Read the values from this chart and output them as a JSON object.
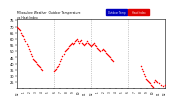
{
  "title": "Milwaukee Weather  Outdoor Temperature",
  "subtitle": "vs Heat Index",
  "bg_color": "#ffffff",
  "temp_color": "#ff0000",
  "heat_color": "#0000ff",
  "legend_labels": [
    "Outdoor Temp",
    "Heat Index"
  ],
  "legend_colors": [
    "#0000bb",
    "#dd0000"
  ],
  "ylim": [
    20,
    76
  ],
  "ytick_positions": [
    25,
    30,
    35,
    40,
    45,
    50,
    55,
    60,
    65,
    70,
    75
  ],
  "ytick_labels": [
    "25",
    "30",
    "35",
    "40",
    "45",
    "50",
    "55",
    "60",
    "65",
    "70",
    "75"
  ],
  "xlim": [
    0,
    1440
  ],
  "vline_positions": [
    360,
    720,
    1080
  ],
  "xtick_step": 60,
  "temp_data_minutes": [
    [
      0,
      70
    ],
    [
      10,
      69
    ],
    [
      20,
      68
    ],
    [
      30,
      67
    ],
    [
      40,
      65
    ],
    [
      50,
      63
    ],
    [
      60,
      62
    ],
    [
      70,
      60
    ],
    [
      80,
      58
    ],
    [
      90,
      56
    ],
    [
      100,
      54
    ],
    [
      110,
      52
    ],
    [
      120,
      50
    ],
    [
      130,
      48
    ],
    [
      140,
      46
    ],
    [
      150,
      44
    ],
    [
      160,
      43
    ],
    [
      170,
      42
    ],
    [
      180,
      41
    ],
    [
      190,
      40
    ],
    [
      200,
      39
    ],
    [
      210,
      38
    ],
    [
      220,
      37
    ],
    [
      230,
      36
    ],
    [
      240,
      35
    ],
    [
      360,
      34
    ],
    [
      370,
      35
    ],
    [
      380,
      36
    ],
    [
      390,
      37
    ],
    [
      400,
      38
    ],
    [
      410,
      40
    ],
    [
      420,
      42
    ],
    [
      430,
      44
    ],
    [
      440,
      46
    ],
    [
      450,
      48
    ],
    [
      460,
      50
    ],
    [
      470,
      51
    ],
    [
      480,
      52
    ],
    [
      490,
      53
    ],
    [
      500,
      54
    ],
    [
      510,
      55
    ],
    [
      520,
      56
    ],
    [
      530,
      57
    ],
    [
      540,
      56
    ],
    [
      550,
      57
    ],
    [
      560,
      58
    ],
    [
      570,
      59
    ],
    [
      580,
      60
    ],
    [
      590,
      58
    ],
    [
      600,
      57
    ],
    [
      610,
      58
    ],
    [
      620,
      59
    ],
    [
      630,
      57
    ],
    [
      640,
      56
    ],
    [
      650,
      55
    ],
    [
      660,
      56
    ],
    [
      670,
      57
    ],
    [
      680,
      58
    ],
    [
      690,
      57
    ],
    [
      700,
      56
    ],
    [
      710,
      55
    ],
    [
      720,
      54
    ],
    [
      730,
      55
    ],
    [
      740,
      56
    ],
    [
      750,
      57
    ],
    [
      760,
      55
    ],
    [
      770,
      54
    ],
    [
      780,
      53
    ],
    [
      790,
      52
    ],
    [
      800,
      51
    ],
    [
      810,
      50
    ],
    [
      820,
      51
    ],
    [
      830,
      52
    ],
    [
      840,
      51
    ],
    [
      850,
      50
    ],
    [
      860,
      49
    ],
    [
      870,
      48
    ],
    [
      880,
      47
    ],
    [
      890,
      46
    ],
    [
      900,
      45
    ],
    [
      910,
      44
    ],
    [
      920,
      43
    ],
    [
      930,
      42
    ],
    [
      1200,
      38
    ],
    [
      1210,
      36
    ],
    [
      1220,
      34
    ],
    [
      1230,
      32
    ],
    [
      1240,
      30
    ],
    [
      1250,
      28
    ],
    [
      1260,
      27
    ],
    [
      1270,
      26
    ],
    [
      1280,
      25
    ],
    [
      1290,
      24
    ],
    [
      1300,
      23
    ],
    [
      1310,
      22
    ],
    [
      1320,
      21
    ],
    [
      1330,
      25
    ],
    [
      1340,
      27
    ],
    [
      1350,
      26
    ],
    [
      1360,
      25
    ],
    [
      1380,
      24
    ],
    [
      1400,
      23
    ],
    [
      1420,
      22
    ],
    [
      1440,
      23
    ]
  ]
}
